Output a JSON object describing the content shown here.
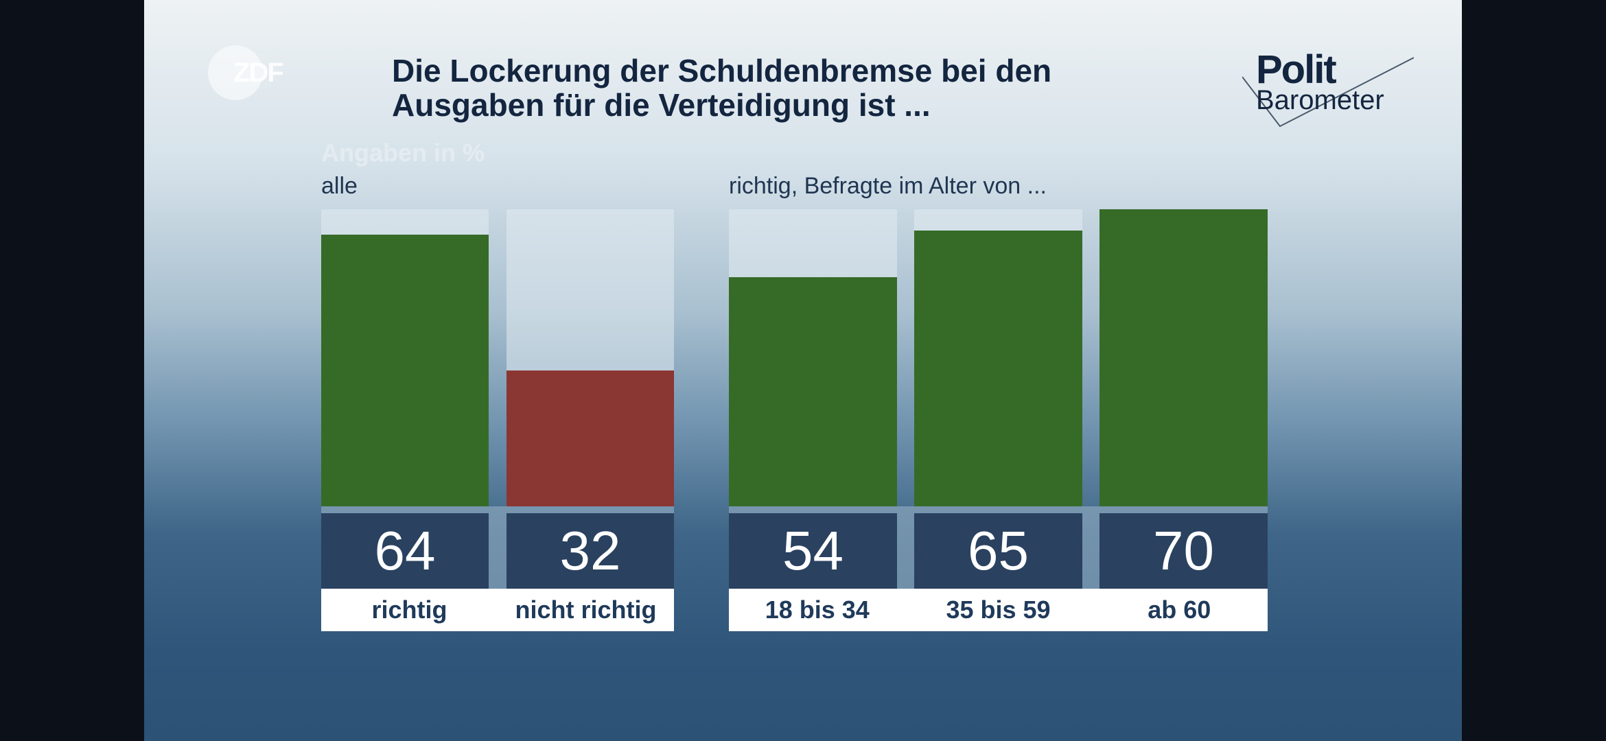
{
  "header": {
    "title_line1": "Die Lockerung der Schuldenbremse bei den",
    "title_line2": "Ausgaben für die Verteidigung ist ...",
    "logo_left": "ZDF",
    "logo_right_line1": "Polit",
    "logo_right_line2": "Barometer"
  },
  "chart_data": [
    {
      "type": "bar",
      "title": "alle",
      "unit_note": "Angaben in %",
      "categories": [
        "richtig",
        "nicht richtig"
      ],
      "values": [
        64,
        32
      ],
      "colors": [
        "#366b27",
        "#8a3633"
      ],
      "ylim": [
        0,
        70
      ]
    },
    {
      "type": "bar",
      "title": "richtig, Befragte im Alter von ...",
      "categories": [
        "18 bis 34",
        "35 bis 59",
        "ab 60"
      ],
      "values": [
        54,
        65,
        70
      ],
      "colors": [
        "#366b27",
        "#366b27",
        "#366b27"
      ],
      "ylim": [
        0,
        70
      ]
    }
  ]
}
